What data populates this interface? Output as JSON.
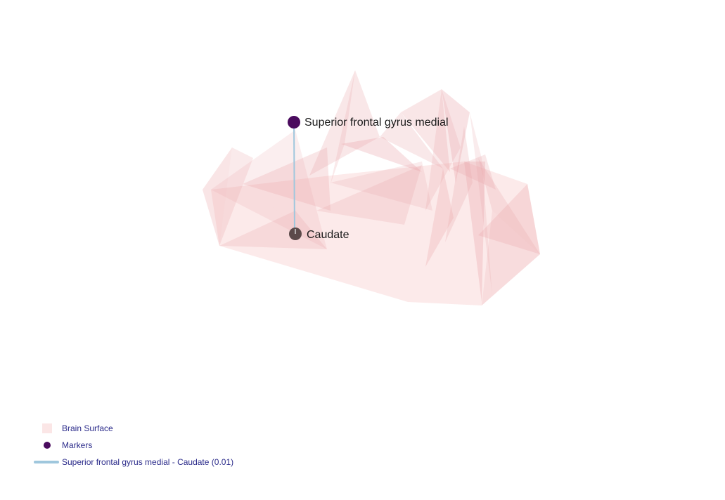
{
  "colors": {
    "surface": "#e8a0a4",
    "surface_light": "#fbe6e6",
    "marker_primary": "#4a0b5e",
    "marker_secondary": "#5b4a4a",
    "edge": "#9fc7dd",
    "legend_text": "#2a2a8a"
  },
  "nodes": [
    {
      "id": "sfgm",
      "label": "Superior frontal gyrus medial"
    },
    {
      "id": "caudate",
      "label": "Caudate"
    }
  ],
  "edges": [
    {
      "from": "sfgm",
      "to": "caudate",
      "weight": 0.01
    }
  ],
  "legend": {
    "items": [
      {
        "id": "surface",
        "label": "Brain Surface",
        "kind": "surface"
      },
      {
        "id": "markers",
        "label": "Markers",
        "kind": "marker"
      },
      {
        "id": "edge",
        "label": "Superior frontal gyrus medial - Caudate (0.01)",
        "kind": "line"
      }
    ]
  }
}
